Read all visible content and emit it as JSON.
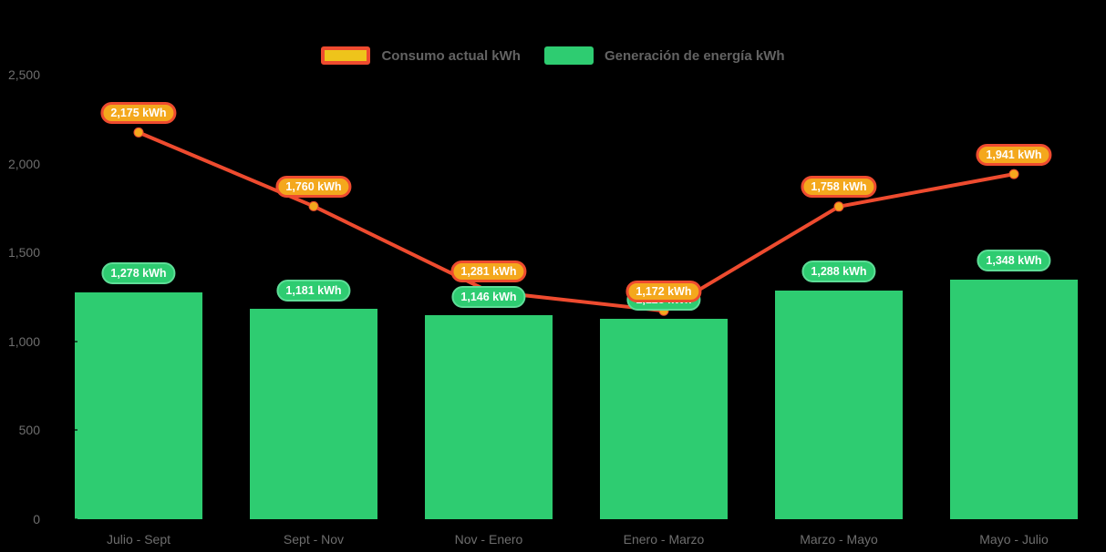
{
  "colors": {
    "background": "#000000",
    "bar": "#2ecc71",
    "bar_label_border": "#5edd97",
    "line": "#ee4b2f",
    "point": "#f4a81d",
    "axis_text": "#6e6e6e",
    "legend_text": "#636363",
    "legend_consumo_fill": "#eec41b",
    "pill_text": "#ffffff"
  },
  "legend": {
    "items": [
      {
        "id": "consumo",
        "label": "Consumo actual kWh"
      },
      {
        "id": "generacion",
        "label": "Generación de energía kWh"
      }
    ]
  },
  "chart_data": {
    "type": "bar",
    "subtype": "combo bar + line",
    "categories": [
      "Julio - Sept",
      "Sept - Nov",
      "Nov - Enero",
      "Enero - Marzo",
      "Marzo - Mayo",
      "Mayo - Julio"
    ],
    "series": [
      {
        "name": "Consumo actual kWh",
        "type": "line",
        "values": [
          2175,
          1760,
          1281,
          1172,
          1758,
          1941
        ],
        "labels": [
          "2,175 kWh",
          "1,760 kWh",
          "1,281 kWh",
          "1,172 kWh",
          "1,758 kWh",
          "1,941 kWh"
        ]
      },
      {
        "name": "Generación de energía kWh",
        "type": "bar",
        "values": [
          1278,
          1181,
          1146,
          1128,
          1288,
          1348
        ],
        "labels": [
          "1,278 kWh",
          "1,181 kWh",
          "1,146 kWh",
          "1,128 kWh",
          "1,288 kWh",
          "1,348 kWh"
        ]
      }
    ],
    "title": "",
    "xlabel": "",
    "ylabel": "",
    "ylim": [
      0,
      2500
    ],
    "yticks": [
      {
        "value": 2500,
        "label": "2,500"
      },
      {
        "value": 2000,
        "label": "2,000"
      },
      {
        "value": 1500,
        "label": "1,500"
      },
      {
        "value": 1000,
        "label": "1,000"
      },
      {
        "value": 500,
        "label": "500"
      },
      {
        "value": 0,
        "label": "0"
      }
    ],
    "grid": false,
    "legend_position": "top-center"
  }
}
